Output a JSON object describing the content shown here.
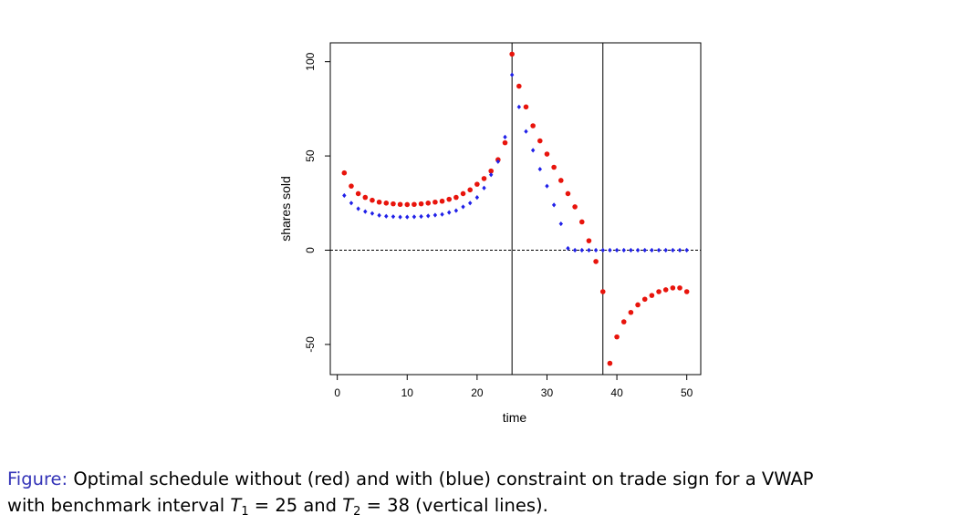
{
  "chart_data": {
    "type": "scatter",
    "xlabel": "time",
    "ylabel": "shares sold",
    "x": [
      1,
      2,
      3,
      4,
      5,
      6,
      7,
      8,
      9,
      10,
      11,
      12,
      13,
      14,
      15,
      16,
      17,
      18,
      19,
      20,
      21,
      22,
      23,
      24,
      25,
      26,
      27,
      28,
      29,
      30,
      31,
      32,
      33,
      34,
      35,
      36,
      37,
      38,
      39,
      40,
      41,
      42,
      43,
      44,
      45,
      46,
      47,
      48,
      49,
      50
    ],
    "series": [
      {
        "color": "#e8140c",
        "marker": "circle",
        "values": [
          41,
          34,
          30,
          28,
          26.5,
          25.5,
          25,
          24.6,
          24.3,
          24.2,
          24.3,
          24.6,
          25,
          25.5,
          26,
          27,
          28,
          30,
          32,
          35,
          38,
          42,
          48,
          57,
          104,
          87,
          76,
          66,
          58,
          51,
          44,
          37,
          30,
          23,
          15,
          5,
          -6,
          -22,
          -60,
          -46,
          -38,
          -33,
          -29,
          -26,
          -24,
          -22,
          -21,
          -20,
          -20,
          -22
        ]
      },
      {
        "color": "#2020e8",
        "marker": "diamond",
        "values": [
          29,
          25,
          22,
          20.5,
          19.5,
          18.5,
          18,
          17.8,
          17.6,
          17.6,
          17.7,
          17.9,
          18.2,
          18.6,
          19,
          20,
          21,
          23,
          25,
          28,
          33,
          40,
          47,
          60,
          93,
          76,
          63,
          53,
          43,
          34,
          24,
          14,
          1,
          0,
          0,
          0,
          0,
          0,
          0,
          0,
          0,
          0,
          0,
          0,
          0,
          0,
          0,
          0,
          0,
          0
        ]
      }
    ],
    "xlim": [
      -1,
      52
    ],
    "ylim": [
      -66,
      110
    ],
    "xticks": [
      0,
      10,
      20,
      30,
      40,
      50
    ],
    "yticks": [
      -50,
      0,
      50,
      100
    ],
    "vlines": [
      25,
      38
    ],
    "hline": 0
  },
  "caption": {
    "label": "Figure:",
    "line1": "Optimal schedule without (red) and with (blue) constraint on trade sign for a VWAP",
    "line2a": "with benchmark interval ",
    "t1": "T",
    "sub1": "1",
    "mid": " = 25 and ",
    "t2": "T",
    "sub2": "2",
    "end": " = 38 (vertical lines)."
  }
}
